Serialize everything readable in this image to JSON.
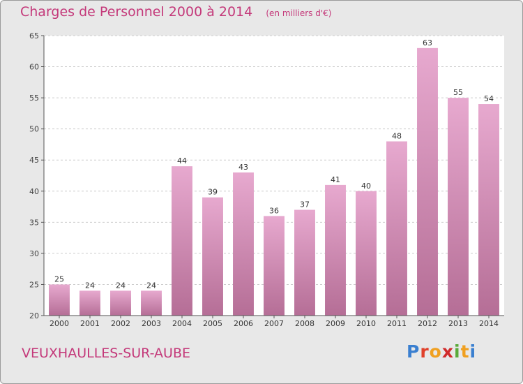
{
  "header": {
    "title": "Charges de Personnel 2000 à 2014",
    "subtitle": "(en milliers d'€)"
  },
  "footer": {
    "commune": "VEUXHAULLES-SUR-AUBE",
    "brand": "Proxiti",
    "brand_colors": [
      "#3a7fd0",
      "#e0402a",
      "#f0a020",
      "#d02a2a",
      "#5aaa3a",
      "#f0a020",
      "#3a7fd0"
    ]
  },
  "colors": {
    "background": "#e8e8e8",
    "plot_background": "#ffffff",
    "bar_light": "#e7a9cf",
    "bar_dark": "#b56e96",
    "title": "#c4397a",
    "grid": "#cccccc"
  },
  "chart_data": {
    "type": "bar",
    "title": "Charges de Personnel 2000 à 2014",
    "subtitle": "(en milliers d'€)",
    "categories": [
      "2000",
      "2001",
      "2002",
      "2003",
      "2004",
      "2005",
      "2006",
      "2007",
      "2008",
      "2009",
      "2010",
      "2011",
      "2012",
      "2013",
      "2014"
    ],
    "values": [
      25,
      24,
      24,
      24,
      44,
      39,
      43,
      36,
      37,
      41,
      40,
      48,
      63,
      55,
      54
    ],
    "ylim": [
      20,
      65
    ],
    "yticks": [
      20,
      25,
      30,
      35,
      40,
      45,
      50,
      55,
      60,
      65
    ],
    "grid": true,
    "data_labels": true
  }
}
